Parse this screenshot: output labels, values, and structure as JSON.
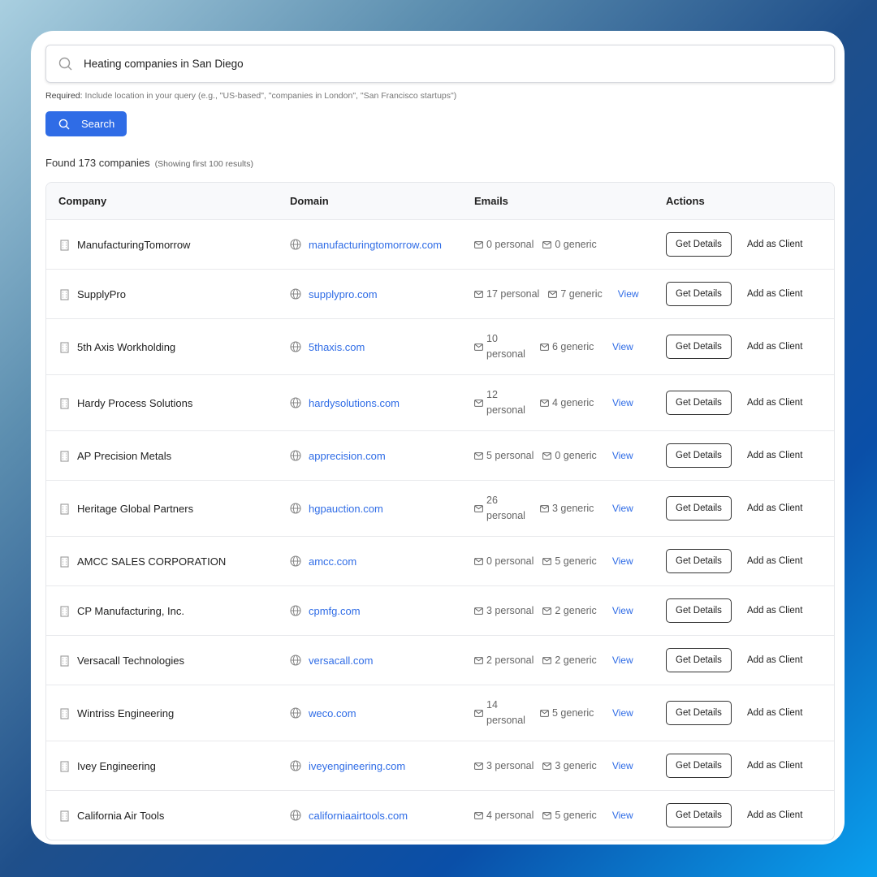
{
  "search": {
    "query": "Heating companies in San Diego",
    "required_label": "Required:",
    "required_text": "Include location in your query (e.g., \"US-based\", \"companies in London\", \"San Francisco startups\")",
    "button": "Search"
  },
  "results": {
    "found": "Found 173 companies",
    "showing": "(Showing first 100 results)"
  },
  "table": {
    "headers": {
      "company": "Company",
      "domain": "Domain",
      "emails": "Emails",
      "actions": "Actions"
    },
    "rows": [
      {
        "company": "ManufacturingTomorrow",
        "domain": "manufacturingtomorrow.com",
        "personal": "0 personal",
        "generic": "0 generic",
        "view": ""
      },
      {
        "company": "SupplyPro",
        "domain": "supplypro.com",
        "personal": "17 personal",
        "generic": "7 generic",
        "view": "View"
      },
      {
        "company": "5th Axis Workholding",
        "domain": "5thaxis.com",
        "personal": "10 personal",
        "generic": "6 generic",
        "view": "View"
      },
      {
        "company": "Hardy Process Solutions",
        "domain": "hardysolutions.com",
        "personal": "12 personal",
        "generic": "4 generic",
        "view": "View"
      },
      {
        "company": "AP Precision Metals",
        "domain": "apprecision.com",
        "personal": "5 personal",
        "generic": "0 generic",
        "view": "View"
      },
      {
        "company": "Heritage Global Partners",
        "domain": "hgpauction.com",
        "personal": "26 personal",
        "generic": "3 generic",
        "view": "View"
      },
      {
        "company": "AMCC SALES CORPORATION",
        "domain": "amcc.com",
        "personal": "0 personal",
        "generic": "5 generic",
        "view": "View"
      },
      {
        "company": "CP Manufacturing, Inc.",
        "domain": "cpmfg.com",
        "personal": "3 personal",
        "generic": "2 generic",
        "view": "View"
      },
      {
        "company": "Versacall Technologies",
        "domain": "versacall.com",
        "personal": "2 personal",
        "generic": "2 generic",
        "view": "View"
      },
      {
        "company": "Wintriss Engineering",
        "domain": "weco.com",
        "personal": "14 personal",
        "generic": "5 generic",
        "view": "View"
      },
      {
        "company": "Ivey Engineering",
        "domain": "iveyengineering.com",
        "personal": "3 personal",
        "generic": "3 generic",
        "view": "View"
      },
      {
        "company": "California Air Tools",
        "domain": "californiaairtools.com",
        "personal": "4 personal",
        "generic": "5 generic",
        "view": "View"
      }
    ],
    "get_details": "Get Details",
    "add_client": "Add as Client"
  },
  "colors": {
    "accent": "#2f6ce6"
  }
}
